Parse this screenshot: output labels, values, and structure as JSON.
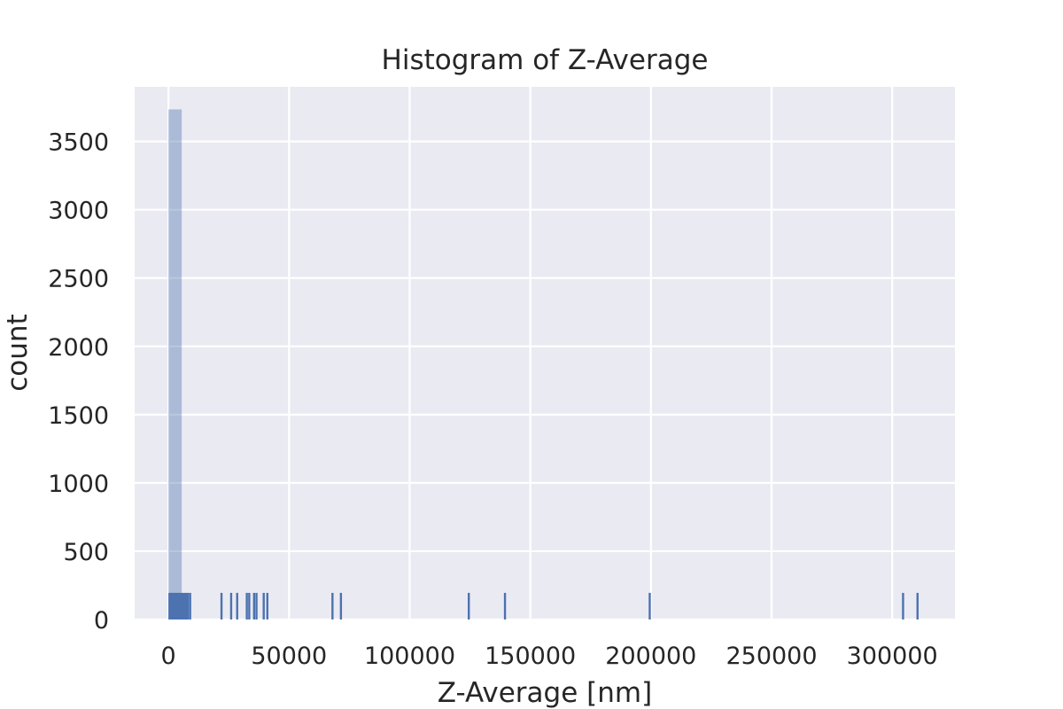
{
  "chart_data": {
    "type": "histogram",
    "title": "Histogram of Z-Average",
    "xlabel": "Z-Average [nm]",
    "ylabel": "count",
    "xlim": [
      -14000,
      326000
    ],
    "ylim": [
      0,
      3900
    ],
    "xticks": [
      0,
      50000,
      100000,
      150000,
      200000,
      250000,
      300000
    ],
    "yticks": [
      0,
      500,
      1000,
      1500,
      2000,
      2500,
      3000,
      3500
    ],
    "grid": true,
    "colors": {
      "background": "#eaeaf2",
      "grid": "#ffffff",
      "bar": "#4c72b0",
      "rug": "#4c72b0"
    },
    "bins": [
      {
        "x0": 0,
        "x1": 5500,
        "count": 3735
      }
    ],
    "rug": {
      "height": 195,
      "dense_range": [
        0,
        8500
      ],
      "values": [
        9000,
        22000,
        26000,
        28500,
        32500,
        33500,
        35500,
        36500,
        39500,
        41000,
        68000,
        71500,
        124500,
        139500,
        199500,
        304500,
        310500
      ]
    }
  }
}
